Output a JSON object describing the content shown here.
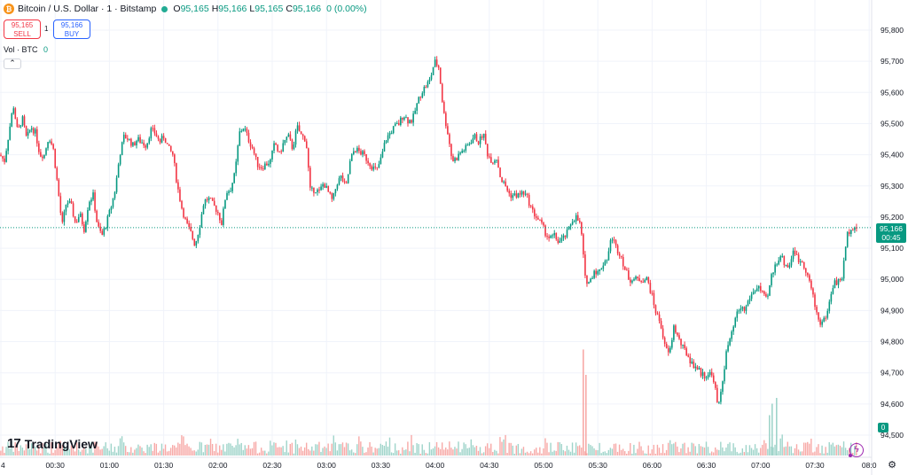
{
  "header": {
    "coin_glyph": "₿",
    "symbol": "Bitcoin / U.S. Dollar · 1 · Bitstamp",
    "ohlc": {
      "o_label": "O",
      "o": "95,165",
      "h_label": "H",
      "h": "95,166",
      "l_label": "L",
      "l": "95,165",
      "c_label": "C",
      "c": "95,166",
      "change": "0 (0.00%)"
    }
  },
  "trade": {
    "sell_price": "95,165",
    "sell_label": "SELL",
    "spread": "1",
    "buy_price": "95,166",
    "buy_label": "BUY"
  },
  "volume_legend": {
    "label": "Vol · BTC",
    "value": "0",
    "collapse_glyph": "⌃"
  },
  "logo": {
    "mark": "17",
    "text": "TradingView"
  },
  "current_price": {
    "price": "95,166",
    "countdown": "00:45"
  },
  "volume_tag": "0",
  "settings_glyph": "⚙",
  "bolt_glyph": "ϟ",
  "price_scale": [
    "95,800",
    "95,700",
    "95,600",
    "95,500",
    "95,400",
    "95,300",
    "95,200",
    "95,100",
    "95,000",
    "94,900",
    "94,800",
    "94,700",
    "94,600",
    "94,500"
  ],
  "time_scale": [
    "4",
    "00:30",
    "01:00",
    "01:30",
    "02:00",
    "02:30",
    "03:00",
    "03:30",
    "04:00",
    "04:30",
    "05:00",
    "05:30",
    "06:00",
    "06:30",
    "07:00",
    "07:30",
    "08:0"
  ],
  "colors": {
    "up": "#089981",
    "down": "#f23645",
    "up_vol": "#9fd4ca",
    "down_vol": "#f7a9a7",
    "grid": "#f0f3fa",
    "price_line": "#089981"
  },
  "chart_data": {
    "type": "candlestick",
    "title": "Bitcoin / U.S. Dollar · 1 · Bitstamp",
    "xlabel": "",
    "ylabel": "",
    "ylim": [
      94500,
      95850
    ],
    "grid": true,
    "x_ticks": [
      "4",
      "00:30",
      "01:00",
      "01:30",
      "02:00",
      "02:30",
      "03:00",
      "03:30",
      "04:00",
      "04:30",
      "05:00",
      "05:30",
      "06:00",
      "06:30",
      "07:00",
      "07:30",
      "08:0"
    ],
    "last_price": 95166,
    "close_path": [
      [
        0,
        95400
      ],
      [
        5,
        95380
      ],
      [
        10,
        95470
      ],
      [
        15,
        95560
      ],
      [
        20,
        95470
      ],
      [
        25,
        95520
      ],
      [
        30,
        95450
      ],
      [
        35,
        95490
      ],
      [
        40,
        95470
      ],
      [
        45,
        95400
      ],
      [
        50,
        95400
      ],
      [
        55,
        95460
      ],
      [
        60,
        95420
      ],
      [
        65,
        95300
      ],
      [
        70,
        95170
      ],
      [
        75,
        95250
      ],
      [
        80,
        95240
      ],
      [
        85,
        95180
      ],
      [
        90,
        95210
      ],
      [
        95,
        95160
      ],
      [
        100,
        95250
      ],
      [
        105,
        95270
      ],
      [
        110,
        95170
      ],
      [
        115,
        95140
      ],
      [
        120,
        95180
      ],
      [
        125,
        95230
      ],
      [
        130,
        95290
      ],
      [
        135,
        95400
      ],
      [
        140,
        95460
      ],
      [
        145,
        95450
      ],
      [
        150,
        95430
      ],
      [
        155,
        95450
      ],
      [
        160,
        95440
      ],
      [
        165,
        95430
      ],
      [
        170,
        95480
      ],
      [
        175,
        95470
      ],
      [
        180,
        95440
      ],
      [
        185,
        95460
      ],
      [
        190,
        95420
      ],
      [
        195,
        95400
      ],
      [
        200,
        95300
      ],
      [
        205,
        95230
      ],
      [
        210,
        95180
      ],
      [
        215,
        95150
      ],
      [
        220,
        95110
      ],
      [
        225,
        95170
      ],
      [
        230,
        95250
      ],
      [
        235,
        95260
      ],
      [
        240,
        95240
      ],
      [
        245,
        95220
      ],
      [
        250,
        95180
      ],
      [
        255,
        95280
      ],
      [
        260,
        95290
      ],
      [
        265,
        95340
      ],
      [
        270,
        95470
      ],
      [
        275,
        95490
      ],
      [
        280,
        95450
      ],
      [
        285,
        95420
      ],
      [
        290,
        95370
      ],
      [
        295,
        95360
      ],
      [
        300,
        95370
      ],
      [
        305,
        95380
      ],
      [
        310,
        95440
      ],
      [
        315,
        95400
      ],
      [
        320,
        95440
      ],
      [
        325,
        95460
      ],
      [
        330,
        95420
      ],
      [
        335,
        95490
      ],
      [
        340,
        95460
      ],
      [
        345,
        95450
      ],
      [
        350,
        95280
      ],
      [
        355,
        95290
      ],
      [
        360,
        95280
      ],
      [
        365,
        95310
      ],
      [
        370,
        95280
      ],
      [
        375,
        95250
      ],
      [
        380,
        95310
      ],
      [
        385,
        95330
      ],
      [
        390,
        95290
      ],
      [
        395,
        95380
      ],
      [
        400,
        95420
      ],
      [
        405,
        95410
      ],
      [
        410,
        95400
      ],
      [
        415,
        95380
      ],
      [
        420,
        95360
      ],
      [
        425,
        95350
      ],
      [
        430,
        95390
      ],
      [
        435,
        95450
      ],
      [
        440,
        95470
      ],
      [
        445,
        95490
      ],
      [
        450,
        95500
      ],
      [
        455,
        95530
      ],
      [
        460,
        95510
      ],
      [
        465,
        95510
      ],
      [
        470,
        95560
      ],
      [
        475,
        95600
      ],
      [
        480,
        95620
      ],
      [
        485,
        95640
      ],
      [
        490,
        95700
      ],
      [
        495,
        95680
      ],
      [
        500,
        95540
      ],
      [
        505,
        95470
      ],
      [
        510,
        95380
      ],
      [
        515,
        95390
      ],
      [
        520,
        95410
      ],
      [
        525,
        95420
      ],
      [
        530,
        95440
      ],
      [
        535,
        95460
      ],
      [
        540,
        95440
      ],
      [
        545,
        95470
      ],
      [
        550,
        95400
      ],
      [
        555,
        95380
      ],
      [
        560,
        95390
      ],
      [
        565,
        95320
      ],
      [
        570,
        95300
      ],
      [
        575,
        95270
      ],
      [
        580,
        95270
      ],
      [
        585,
        95270
      ],
      [
        590,
        95280
      ],
      [
        595,
        95260
      ],
      [
        600,
        95220
      ],
      [
        605,
        95200
      ],
      [
        610,
        95180
      ],
      [
        615,
        95150
      ],
      [
        620,
        95130
      ],
      [
        625,
        95140
      ],
      [
        630,
        95120
      ],
      [
        635,
        95130
      ],
      [
        640,
        95150
      ],
      [
        645,
        95190
      ],
      [
        650,
        95200
      ],
      [
        655,
        95170
      ],
      [
        660,
        95000
      ],
      [
        665,
        94990
      ],
      [
        670,
        95030
      ],
      [
        675,
        95020
      ],
      [
        680,
        95050
      ],
      [
        685,
        95070
      ],
      [
        690,
        95140
      ],
      [
        695,
        95100
      ],
      [
        700,
        95080
      ],
      [
        705,
        95030
      ],
      [
        710,
        95000
      ],
      [
        715,
        95000
      ],
      [
        720,
        95000
      ],
      [
        725,
        95000
      ],
      [
        730,
        95000
      ],
      [
        735,
        94950
      ],
      [
        740,
        94890
      ],
      [
        745,
        94860
      ],
      [
        750,
        94780
      ],
      [
        755,
        94760
      ],
      [
        760,
        94850
      ],
      [
        765,
        94810
      ],
      [
        770,
        94780
      ],
      [
        775,
        94760
      ],
      [
        780,
        94730
      ],
      [
        785,
        94720
      ],
      [
        790,
        94700
      ],
      [
        795,
        94690
      ],
      [
        800,
        94700
      ],
      [
        805,
        94680
      ],
      [
        810,
        94580
      ],
      [
        815,
        94680
      ],
      [
        820,
        94780
      ],
      [
        825,
        94820
      ],
      [
        830,
        94880
      ],
      [
        835,
        94910
      ],
      [
        840,
        94900
      ],
      [
        845,
        94940
      ],
      [
        850,
        94960
      ],
      [
        855,
        94980
      ],
      [
        860,
        94950
      ],
      [
        865,
        94930
      ],
      [
        870,
        95010
      ],
      [
        875,
        95050
      ],
      [
        880,
        95080
      ],
      [
        885,
        95050
      ],
      [
        890,
        95040
      ],
      [
        895,
        95100
      ],
      [
        900,
        95060
      ],
      [
        905,
        95060
      ],
      [
        910,
        95020
      ],
      [
        915,
        94970
      ],
      [
        920,
        94900
      ],
      [
        925,
        94860
      ],
      [
        930,
        94870
      ],
      [
        935,
        94920
      ],
      [
        940,
        94990
      ],
      [
        945,
        94990
      ],
      [
        950,
        95010
      ],
      [
        955,
        95140
      ],
      [
        960,
        95170
      ],
      [
        965,
        95166
      ]
    ],
    "volume_spikes": [
      {
        "x": 657,
        "volume_frac": 0.92
      },
      {
        "x": 660,
        "volume_frac": 0.7
      },
      {
        "x": 867,
        "volume_frac": 0.35
      },
      {
        "x": 870,
        "volume_frac": 0.45
      },
      {
        "x": 875,
        "volume_frac": 0.5
      }
    ]
  }
}
